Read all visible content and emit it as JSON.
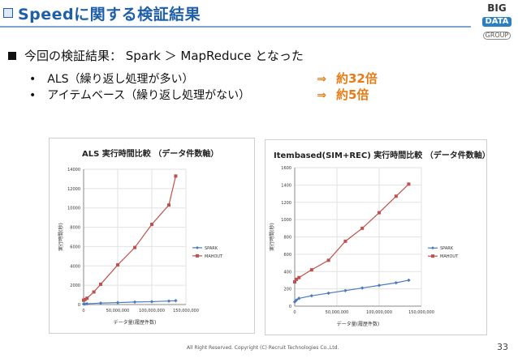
{
  "slide": {
    "title": "Speedに関する検証結果",
    "logo": {
      "line1": "BIG",
      "line2": "DATA",
      "line3": "GROUP"
    },
    "bullet": "今回の検証結果： Spark ＞ MapReduce となった",
    "items": [
      {
        "dot": "•",
        "label": "ALS（繰り返し処理が多い）",
        "arrow": "⇒",
        "result": "約32倍"
      },
      {
        "dot": "•",
        "label": "アイテムベース（繰り返し処理がない）",
        "arrow": "⇒",
        "result": "約5倍"
      }
    ],
    "footer": "All Right Reserved. Copyright (C) Recruit Technologies Co.,Ltd.",
    "page_number": "33"
  },
  "colors": {
    "spark": "#4a7cc0",
    "mahout": "#c0504d",
    "accent": "#e87b14",
    "title": "#1f5fa8"
  },
  "chart_data": [
    {
      "type": "line",
      "title": "ALS 実行時間比較 （データ件数軸）",
      "xlabel": "データ量(履歴件数)",
      "ylabel": "実行時間(秒)",
      "xlim": [
        0,
        150000000
      ],
      "ylim": [
        0,
        14000
      ],
      "xticks": [
        0,
        50000000,
        100000000,
        150000000
      ],
      "xtick_labels": [
        "0",
        "50,000,000",
        "100,000,000",
        "150,000,000"
      ],
      "yticks": [
        0,
        2000,
        4000,
        6000,
        8000,
        10000,
        12000,
        14000
      ],
      "ytick_labels": [
        "0",
        "2000",
        "4000",
        "6000",
        "8000",
        "10000",
        "12000",
        "14000"
      ],
      "legend": "right",
      "series": [
        {
          "name": "SPARK",
          "x": [
            0,
            2000000,
            5000000,
            25000000,
            50000000,
            75000000,
            100000000,
            125000000,
            135000000
          ],
          "y": [
            50,
            60,
            80,
            150,
            200,
            260,
            300,
            360,
            400
          ]
        },
        {
          "name": "MAHOUT",
          "x": [
            0,
            2000000,
            5000000,
            15000000,
            25000000,
            50000000,
            75000000,
            100000000,
            125000000,
            135000000
          ],
          "y": [
            450,
            520,
            650,
            1300,
            2100,
            4100,
            5900,
            8300,
            10300,
            13300
          ]
        }
      ]
    },
    {
      "type": "line",
      "title": "Itembased(SIM+REC) 実行時間比較 （データ件数軸）",
      "xlabel": "データ量(履歴件数)",
      "ylabel": "実行時間(秒)",
      "xlim": [
        0,
        150000000
      ],
      "ylim": [
        0,
        1600
      ],
      "xticks": [
        0,
        50000000,
        100000000,
        150000000
      ],
      "xtick_labels": [
        "0",
        "50,000,000",
        "100,000,000",
        "150,000,000"
      ],
      "yticks": [
        0,
        200,
        400,
        600,
        800,
        1000,
        1200,
        1400,
        1600
      ],
      "ytick_labels": [
        "0",
        "200",
        "400",
        "600",
        "800",
        "1000",
        "1200",
        "1400",
        "1600"
      ],
      "legend": "right",
      "series": [
        {
          "name": "SPARK",
          "x": [
            0,
            2000000,
            5000000,
            20000000,
            40000000,
            60000000,
            80000000,
            100000000,
            120000000,
            135000000
          ],
          "y": [
            50,
            70,
            90,
            120,
            150,
            180,
            210,
            240,
            270,
            300
          ]
        },
        {
          "name": "MAHOUT",
          "x": [
            0,
            2000000,
            5000000,
            20000000,
            40000000,
            60000000,
            80000000,
            100000000,
            120000000,
            135000000
          ],
          "y": [
            280,
            310,
            330,
            420,
            530,
            750,
            900,
            1080,
            1270,
            1410
          ]
        }
      ]
    }
  ]
}
